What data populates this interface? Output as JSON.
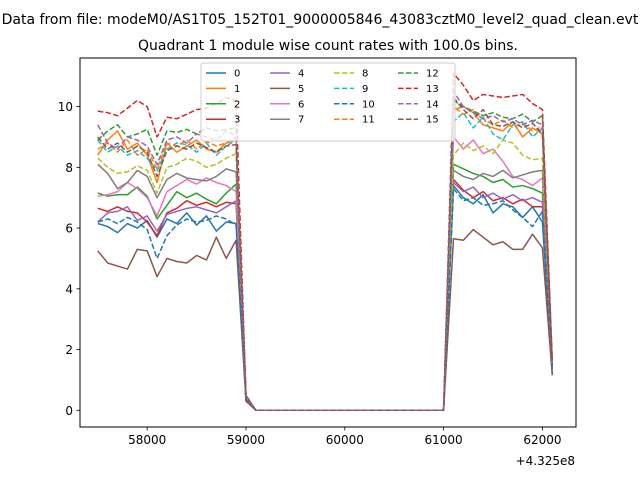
{
  "figure_title": "Data from file: modeM0/AS1T05_152T01_9000005846_43083cztM0_level2_quad_clean.evt",
  "chart_data": {
    "type": "line",
    "title": "Quadrant 1 module wise count rates with 100.0s bins.",
    "xlabel": "",
    "ylabel": "",
    "x_offset_label": "+4.325e8",
    "xlim": [
      57320,
      62340
    ],
    "ylim": [
      -0.55,
      11.6
    ],
    "xticks": [
      58000,
      59000,
      60000,
      61000,
      62000
    ],
    "xtick_labels": [
      "58000",
      "59000",
      "60000",
      "61000",
      "62000"
    ],
    "yticks": [
      0,
      2,
      4,
      6,
      8,
      10
    ],
    "ytick_labels": [
      "0",
      "2",
      "4",
      "6",
      "8",
      "10"
    ],
    "grid": false,
    "legend_position": "top-center",
    "legend_columns": 4,
    "x": [
      57500,
      57600,
      57700,
      57800,
      57900,
      58000,
      58100,
      58200,
      58300,
      58400,
      58500,
      58600,
      58700,
      58800,
      58900,
      59000,
      59100,
      59200,
      59300,
      59400,
      59500,
      59600,
      59700,
      59800,
      59900,
      60000,
      60100,
      60200,
      60300,
      60400,
      60500,
      60600,
      60700,
      60800,
      60900,
      61000,
      61100,
      61200,
      61300,
      61400,
      61500,
      61600,
      61700,
      61800,
      61900,
      62000,
      62100
    ],
    "series": [
      {
        "name": "0",
        "color": "#1f77b4",
        "dash": "solid",
        "values": [
          6.15,
          6.05,
          5.85,
          6.15,
          6.0,
          6.25,
          5.7,
          6.3,
          6.15,
          6.5,
          6.1,
          6.4,
          5.9,
          6.2,
          6.15,
          0.35,
          0.0,
          0.0,
          0.0,
          0.0,
          0.0,
          0.0,
          0.0,
          0.0,
          0.0,
          0.0,
          0.0,
          0.0,
          0.0,
          0.0,
          0.0,
          0.0,
          0.0,
          0.0,
          0.0,
          0.0,
          7.4,
          7.0,
          6.8,
          7.1,
          6.5,
          6.8,
          6.7,
          6.35,
          6.7,
          6.2,
          1.3
        ]
      },
      {
        "name": "1",
        "color": "#ff7f0e",
        "dash": "solid",
        "values": [
          8.4,
          8.9,
          9.2,
          8.6,
          8.8,
          8.4,
          7.5,
          8.8,
          8.5,
          8.7,
          8.9,
          8.6,
          8.5,
          8.8,
          8.9,
          0.45,
          0.0,
          0.0,
          0.0,
          0.0,
          0.0,
          0.0,
          0.0,
          0.0,
          0.0,
          0.0,
          0.0,
          0.0,
          0.0,
          0.0,
          0.0,
          0.0,
          0.0,
          0.0,
          0.0,
          0.0,
          9.9,
          10.0,
          9.8,
          9.4,
          9.3,
          9.2,
          9.5,
          9.0,
          9.3,
          9.1,
          1.45
        ]
      },
      {
        "name": "2",
        "color": "#2ca02c",
        "dash": "solid",
        "values": [
          7.15,
          7.05,
          7.1,
          7.1,
          7.35,
          7.05,
          6.3,
          6.75,
          7.2,
          7.0,
          7.15,
          6.95,
          6.8,
          7.15,
          7.45,
          0.4,
          0.0,
          0.0,
          0.0,
          0.0,
          0.0,
          0.0,
          0.0,
          0.0,
          0.0,
          0.0,
          0.0,
          0.0,
          0.0,
          0.0,
          0.0,
          0.0,
          0.0,
          0.0,
          0.0,
          0.0,
          8.1,
          7.95,
          7.8,
          7.7,
          7.5,
          7.6,
          7.35,
          7.4,
          7.3,
          7.15,
          1.35
        ]
      },
      {
        "name": "3",
        "color": "#d62728",
        "dash": "solid",
        "values": [
          6.65,
          6.55,
          6.7,
          6.55,
          6.5,
          6.2,
          5.75,
          6.5,
          6.65,
          6.9,
          6.75,
          6.85,
          6.7,
          6.85,
          6.8,
          0.38,
          0.0,
          0.0,
          0.0,
          0.0,
          0.0,
          0.0,
          0.0,
          0.0,
          0.0,
          0.0,
          0.0,
          0.0,
          0.0,
          0.0,
          0.0,
          0.0,
          0.0,
          0.0,
          0.0,
          0.0,
          7.6,
          7.25,
          7.0,
          7.2,
          6.9,
          7.0,
          6.8,
          6.95,
          6.7,
          6.7,
          1.2
        ]
      },
      {
        "name": "4",
        "color": "#9467bd",
        "dash": "solid",
        "values": [
          6.2,
          6.5,
          6.55,
          6.7,
          6.25,
          6.4,
          5.9,
          6.45,
          6.55,
          6.65,
          6.7,
          6.6,
          6.5,
          6.7,
          6.9,
          0.38,
          0.0,
          0.0,
          0.0,
          0.0,
          0.0,
          0.0,
          0.0,
          0.0,
          0.0,
          0.0,
          0.0,
          0.0,
          0.0,
          0.0,
          0.0,
          0.0,
          0.0,
          0.0,
          0.0,
          0.0,
          7.5,
          7.2,
          7.35,
          7.0,
          7.15,
          6.95,
          7.1,
          6.9,
          7.0,
          6.85,
          1.2
        ]
      },
      {
        "name": "5",
        "color": "#8c564b",
        "dash": "solid",
        "values": [
          5.25,
          4.85,
          4.75,
          4.65,
          5.3,
          5.25,
          4.4,
          5.0,
          4.9,
          4.85,
          5.1,
          4.95,
          5.7,
          5.0,
          5.6,
          0.3,
          0.0,
          0.0,
          0.0,
          0.0,
          0.0,
          0.0,
          0.0,
          0.0,
          0.0,
          0.0,
          0.0,
          0.0,
          0.0,
          0.0,
          0.0,
          0.0,
          0.0,
          0.0,
          0.0,
          0.0,
          5.65,
          5.6,
          5.95,
          5.7,
          5.45,
          5.55,
          5.3,
          5.3,
          5.8,
          5.35,
          1.15
        ]
      },
      {
        "name": "6",
        "color": "#e377c2",
        "dash": "solid",
        "values": [
          7.05,
          7.1,
          7.2,
          7.5,
          7.3,
          7.0,
          6.4,
          7.2,
          7.4,
          7.6,
          7.45,
          7.65,
          7.5,
          7.4,
          7.2,
          0.42,
          0.0,
          0.0,
          0.0,
          0.0,
          0.0,
          0.0,
          0.0,
          0.0,
          0.0,
          0.0,
          0.0,
          0.0,
          0.0,
          0.0,
          0.0,
          0.0,
          0.0,
          0.0,
          0.0,
          0.0,
          9.0,
          8.6,
          8.9,
          8.45,
          8.6,
          8.2,
          7.7,
          7.6,
          7.4,
          7.65,
          1.3
        ]
      },
      {
        "name": "7",
        "color": "#7f7f7f",
        "dash": "solid",
        "values": [
          8.1,
          7.8,
          7.3,
          7.5,
          7.9,
          7.7,
          7.0,
          7.6,
          7.8,
          7.65,
          7.6,
          7.55,
          7.7,
          7.95,
          7.85,
          0.45,
          0.0,
          0.0,
          0.0,
          0.0,
          0.0,
          0.0,
          0.0,
          0.0,
          0.0,
          0.0,
          0.0,
          0.0,
          0.0,
          0.0,
          0.0,
          0.0,
          0.0,
          0.0,
          0.0,
          0.0,
          7.9,
          7.7,
          7.6,
          7.8,
          7.7,
          7.9,
          7.65,
          7.75,
          7.85,
          7.9,
          1.3
        ]
      },
      {
        "name": "8",
        "color": "#bcbd22",
        "dash": "dashed",
        "values": [
          8.3,
          8.0,
          7.8,
          7.85,
          8.05,
          7.9,
          7.15,
          8.0,
          8.1,
          8.3,
          8.2,
          8.0,
          8.1,
          8.3,
          8.45,
          0.45,
          0.0,
          0.0,
          0.0,
          0.0,
          0.0,
          0.0,
          0.0,
          0.0,
          0.0,
          0.0,
          0.0,
          0.0,
          0.0,
          0.0,
          0.0,
          0.0,
          0.0,
          0.0,
          0.0,
          0.0,
          8.4,
          8.8,
          8.55,
          8.7,
          8.45,
          8.9,
          8.8,
          8.4,
          8.25,
          8.3,
          1.4
        ]
      },
      {
        "name": "9",
        "color": "#17becf",
        "dash": "dashed",
        "values": [
          8.9,
          8.5,
          8.7,
          8.4,
          8.55,
          8.3,
          7.9,
          8.6,
          8.8,
          8.75,
          8.5,
          8.8,
          8.4,
          8.7,
          8.9,
          0.45,
          0.0,
          0.0,
          0.0,
          0.0,
          0.0,
          0.0,
          0.0,
          0.0,
          0.0,
          0.0,
          0.0,
          0.0,
          0.0,
          0.0,
          0.0,
          0.0,
          0.0,
          0.0,
          0.0,
          0.0,
          9.5,
          9.8,
          9.3,
          9.65,
          9.1,
          8.9,
          9.4,
          9.5,
          9.0,
          9.3,
          1.5
        ]
      },
      {
        "name": "10",
        "color": "#1f77b4",
        "dash": "dashed",
        "values": [
          6.2,
          6.3,
          6.15,
          6.35,
          6.2,
          5.95,
          5.0,
          5.75,
          6.1,
          6.3,
          6.2,
          6.25,
          6.4,
          6.3,
          6.1,
          0.36,
          0.0,
          0.0,
          0.0,
          0.0,
          0.0,
          0.0,
          0.0,
          0.0,
          0.0,
          0.0,
          0.0,
          0.0,
          0.0,
          0.0,
          0.0,
          0.0,
          0.0,
          0.0,
          0.0,
          0.0,
          7.3,
          6.9,
          7.0,
          6.75,
          6.8,
          6.9,
          6.6,
          6.35,
          6.05,
          6.55,
          1.25
        ]
      },
      {
        "name": "11",
        "color": "#ff7f0e",
        "dash": "dashed",
        "values": [
          8.6,
          8.8,
          8.5,
          8.9,
          8.4,
          8.6,
          7.95,
          8.8,
          8.7,
          8.9,
          8.6,
          8.85,
          8.7,
          8.8,
          9.0,
          0.46,
          0.0,
          0.0,
          0.0,
          0.0,
          0.0,
          0.0,
          0.0,
          0.0,
          0.0,
          0.0,
          0.0,
          0.0,
          0.0,
          0.0,
          0.0,
          0.0,
          0.0,
          0.0,
          0.0,
          0.0,
          10.0,
          9.75,
          9.9,
          9.6,
          9.4,
          9.55,
          9.3,
          9.45,
          9.2,
          9.35,
          1.5
        ]
      },
      {
        "name": "12",
        "color": "#2ca02c",
        "dash": "dashed",
        "values": [
          8.9,
          9.2,
          9.4,
          9.0,
          9.1,
          9.25,
          8.4,
          9.2,
          9.15,
          9.25,
          9.1,
          9.3,
          9.2,
          9.25,
          9.3,
          0.48,
          0.0,
          0.0,
          0.0,
          0.0,
          0.0,
          0.0,
          0.0,
          0.0,
          0.0,
          0.0,
          0.0,
          0.0,
          0.0,
          0.0,
          0.0,
          0.0,
          0.0,
          0.0,
          0.0,
          0.0,
          10.2,
          10.0,
          9.85,
          9.7,
          9.8,
          9.65,
          9.6,
          9.75,
          9.5,
          9.7,
          1.55
        ]
      },
      {
        "name": "13",
        "color": "#d62728",
        "dash": "dashed",
        "values": [
          9.85,
          9.8,
          9.7,
          9.95,
          10.2,
          10.0,
          9.0,
          9.65,
          9.6,
          9.75,
          9.9,
          9.95,
          10.1,
          10.3,
          10.2,
          0.5,
          0.0,
          0.0,
          0.0,
          0.0,
          0.0,
          0.0,
          0.0,
          0.0,
          0.0,
          0.0,
          0.0,
          0.0,
          0.0,
          0.0,
          0.0,
          0.0,
          0.0,
          0.0,
          0.0,
          0.0,
          11.1,
          10.7,
          10.2,
          10.4,
          10.35,
          10.3,
          10.35,
          10.4,
          10.1,
          9.9,
          1.65
        ]
      },
      {
        "name": "14",
        "color": "#9467bd",
        "dash": "dashed",
        "values": [
          9.4,
          8.8,
          8.6,
          9.0,
          8.9,
          8.7,
          8.1,
          8.9,
          9.0,
          8.8,
          9.1,
          9.0,
          8.9,
          9.2,
          9.05,
          0.47,
          0.0,
          0.0,
          0.0,
          0.0,
          0.0,
          0.0,
          0.0,
          0.0,
          0.0,
          0.0,
          0.0,
          0.0,
          0.0,
          0.0,
          0.0,
          0.0,
          0.0,
          0.0,
          0.0,
          0.0,
          10.5,
          10.0,
          9.8,
          9.6,
          9.7,
          9.5,
          9.6,
          9.4,
          9.55,
          9.4,
          1.5
        ]
      },
      {
        "name": "15",
        "color": "#8c564b",
        "dash": "dashed",
        "values": [
          9.0,
          8.6,
          8.8,
          8.5,
          8.7,
          8.5,
          7.7,
          8.55,
          8.7,
          8.6,
          8.8,
          8.65,
          8.5,
          8.7,
          8.75,
          0.45,
          0.0,
          0.0,
          0.0,
          0.0,
          0.0,
          0.0,
          0.0,
          0.0,
          0.0,
          0.0,
          0.0,
          0.0,
          0.0,
          0.0,
          0.0,
          0.0,
          0.0,
          0.0,
          0.0,
          0.0,
          10.3,
          9.9,
          9.6,
          9.9,
          9.4,
          9.35,
          9.5,
          9.3,
          9.45,
          9.1,
          1.45
        ]
      }
    ]
  }
}
